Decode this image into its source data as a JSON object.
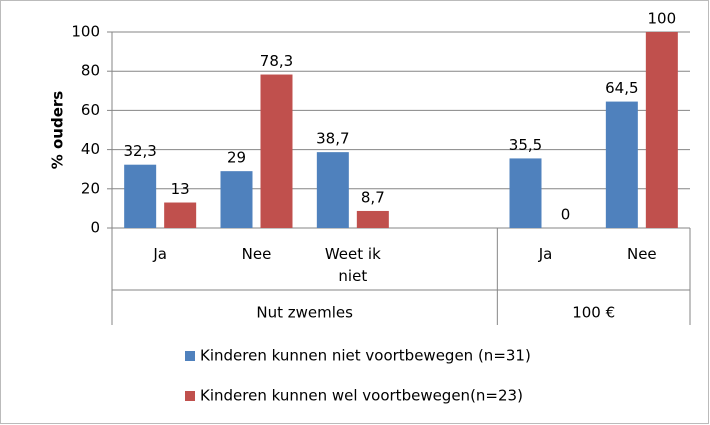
{
  "chart_data": {
    "type": "bar",
    "y_label": "% ouders",
    "categories": [
      "Ja",
      "Nee",
      "Weet ik niet",
      null,
      "Ja",
      "Nee"
    ],
    "groups": [
      {
        "label": "Nut zwemles",
        "span": 4
      },
      {
        "label": "100 €",
        "span": 2
      }
    ],
    "series": [
      {
        "name": "Kinderen kunnen niet voortbewegen (n=31)",
        "color": "#4f81bd",
        "values": [
          32.3,
          29,
          38.7,
          null,
          35.5,
          64.5
        ],
        "value_labels": [
          "32,3",
          "29",
          "38,7",
          null,
          "35,5",
          "64,5"
        ]
      },
      {
        "name": "Kinderen kunnen wel voortbewegen(n=23)",
        "color": "#c0504d",
        "values": [
          13,
          78.3,
          8.7,
          null,
          0,
          100
        ],
        "value_labels": [
          "13",
          "78,3",
          "8,7",
          null,
          "0",
          "100"
        ]
      }
    ],
    "ylim": [
      0,
      100
    ],
    "yticks": [
      0,
      20,
      40,
      60,
      80,
      100
    ],
    "grid": true
  }
}
